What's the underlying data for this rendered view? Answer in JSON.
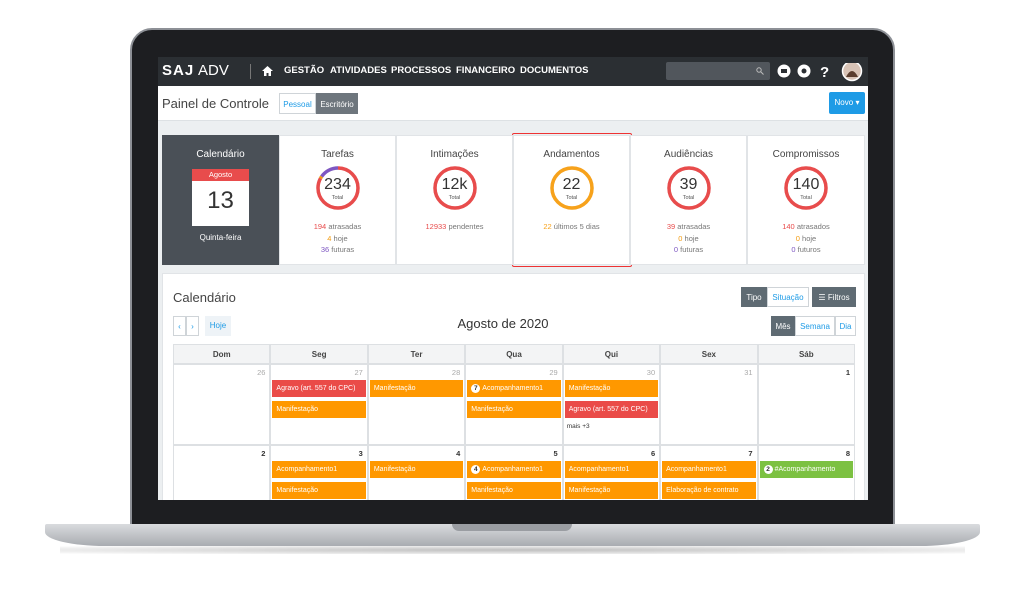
{
  "logo": {
    "brand": "SAJ",
    "product": "ADV"
  },
  "nav": [
    "GESTÃO",
    "ATIVIDADES",
    "PROCESSOS",
    "FINANCEIRO",
    "DOCUMENTOS"
  ],
  "page_title": "Painel de Controle",
  "tabs": [
    "Pessoal",
    "Escritório"
  ],
  "new_button": "Novo",
  "date_card": {
    "title": "Calendário",
    "month": "Agosto",
    "day": "13",
    "weekday": "Quinta-feira"
  },
  "cards": [
    {
      "title": "Tarefas",
      "value": "234",
      "unit": "Total",
      "stats": [
        {
          "count": 194,
          "label": "atrasadas",
          "color": "#e84c4c"
        },
        {
          "count": 4,
          "label": "hoje",
          "color": "#f39c12"
        },
        {
          "count": 36,
          "label": "futuras",
          "color": "#7e57c2"
        }
      ]
    },
    {
      "title": "Intimações",
      "value": "12k",
      "unit": "Total",
      "stats": [
        {
          "count": 12933,
          "label": "pendentes",
          "color": "#e84c4c"
        }
      ]
    },
    {
      "title": "Andamentos",
      "value": "22",
      "unit": "Total",
      "stats": [
        {
          "count": 22,
          "label": "últimos 5 dias",
          "color": "#f7a21b"
        }
      ]
    },
    {
      "title": "Audiências",
      "value": "39",
      "unit": "Total",
      "stats": [
        {
          "count": 39,
          "label": "atrasadas",
          "color": "#e84c4c"
        },
        {
          "count": 0,
          "label": "hoje",
          "color": "#f39c12"
        },
        {
          "count": 0,
          "label": "futuras",
          "color": "#7e57c2"
        }
      ]
    },
    {
      "title": "Compromissos",
      "value": "140",
      "unit": "Total",
      "stats": [
        {
          "count": 140,
          "label": "atrasados",
          "color": "#e84c4c"
        },
        {
          "count": 0,
          "label": "hoje",
          "color": "#f39c12"
        },
        {
          "count": 0,
          "label": "futuros",
          "color": "#7e57c2"
        }
      ]
    }
  ],
  "calendar": {
    "title": "Calendário",
    "filters": [
      "Tipo",
      "Situação",
      "Filtros"
    ],
    "today": "Hoje",
    "month_label": "Agosto de 2020",
    "views": [
      "Mês",
      "Semana",
      "Dia"
    ],
    "weekdays": [
      "Dom",
      "Seg",
      "Ter",
      "Qua",
      "Qui",
      "Sex",
      "Sáb"
    ],
    "weeks": [
      [
        {
          "day": "26",
          "muted": true,
          "events": []
        },
        {
          "day": "27",
          "muted": true,
          "events": [
            {
              "text": "Agravo (art. 557 do CPC)",
              "color": "#ea4b48"
            },
            {
              "text": "Manifestação",
              "color": "#ff9800"
            }
          ]
        },
        {
          "day": "28",
          "muted": true,
          "events": [
            {
              "text": "Manifestação",
              "color": "#ff9800"
            }
          ]
        },
        {
          "day": "29",
          "muted": true,
          "events": [
            {
              "text": "Acompanhamento1",
              "color": "#ff9800",
              "badge": "7"
            },
            {
              "text": "Manifestação",
              "color": "#ff9800"
            }
          ]
        },
        {
          "day": "30",
          "muted": true,
          "events": [
            {
              "text": "Manifestação",
              "color": "#ff9800"
            },
            {
              "text": "Agravo (art. 557 do CPC)",
              "color": "#ea4b48"
            }
          ],
          "more": "mais +3"
        },
        {
          "day": "31",
          "muted": true,
          "events": []
        },
        {
          "day": "1",
          "muted": false,
          "events": []
        }
      ],
      [
        {
          "day": "2",
          "muted": false,
          "events": []
        },
        {
          "day": "3",
          "muted": false,
          "events": [
            {
              "text": "Acompanhamento1",
              "color": "#ff9800"
            },
            {
              "text": "Manifestação",
              "color": "#ff9800"
            }
          ]
        },
        {
          "day": "4",
          "muted": false,
          "events": [
            {
              "text": "Manifestação",
              "color": "#ff9800"
            }
          ]
        },
        {
          "day": "5",
          "muted": false,
          "events": [
            {
              "text": "Acompanhamento1",
              "color": "#ff9800",
              "badge": "4"
            },
            {
              "text": "Manifestação",
              "color": "#ff9800"
            }
          ]
        },
        {
          "day": "6",
          "muted": false,
          "events": [
            {
              "text": "Acompanhamento1",
              "color": "#ff9800"
            },
            {
              "text": "Manifestação",
              "color": "#ff9800"
            }
          ]
        },
        {
          "day": "7",
          "muted": false,
          "events": [
            {
              "text": "Acompanhamento1",
              "color": "#ff9800"
            },
            {
              "text": "Elaboração de contrato",
              "color": "#ff9800"
            }
          ]
        },
        {
          "day": "8",
          "muted": false,
          "events": [
            {
              "text": "#Acompanhamento",
              "color": "#7cc142",
              "badge": "2"
            }
          ]
        }
      ]
    ]
  }
}
